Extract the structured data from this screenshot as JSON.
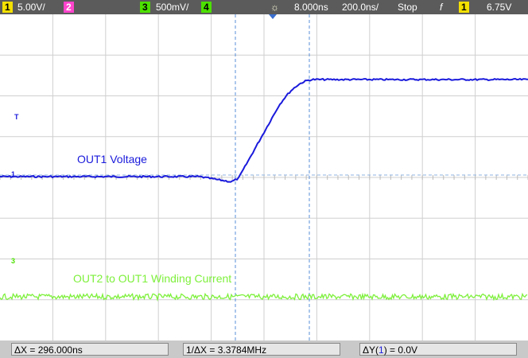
{
  "header": {
    "ch1": "1",
    "ch1_scale": "5.00V/",
    "ch2": "2",
    "ch3": "3",
    "ch3_scale": "500mV/",
    "ch4": "4",
    "delay": "8.000ns",
    "timebase": "200.0ns/",
    "status": "Stop",
    "trigger_slope": "f",
    "trigger_source": "1",
    "trigger_level": "6.75V"
  },
  "markers": {
    "trigger": "T",
    "ch1": "1",
    "ch3": "3"
  },
  "labels": {
    "out1": "OUT1 Voltage",
    "out2": "OUT2 to OUT1 Winding Current"
  },
  "footer": {
    "dx": "ΔX = 296.000ns",
    "inv_dx": "1/ΔX = 3.3784MHz",
    "dy_prefix": "ΔY(",
    "dy_channel": "1",
    "dy_suffix": ") = 0.0V"
  }
}
